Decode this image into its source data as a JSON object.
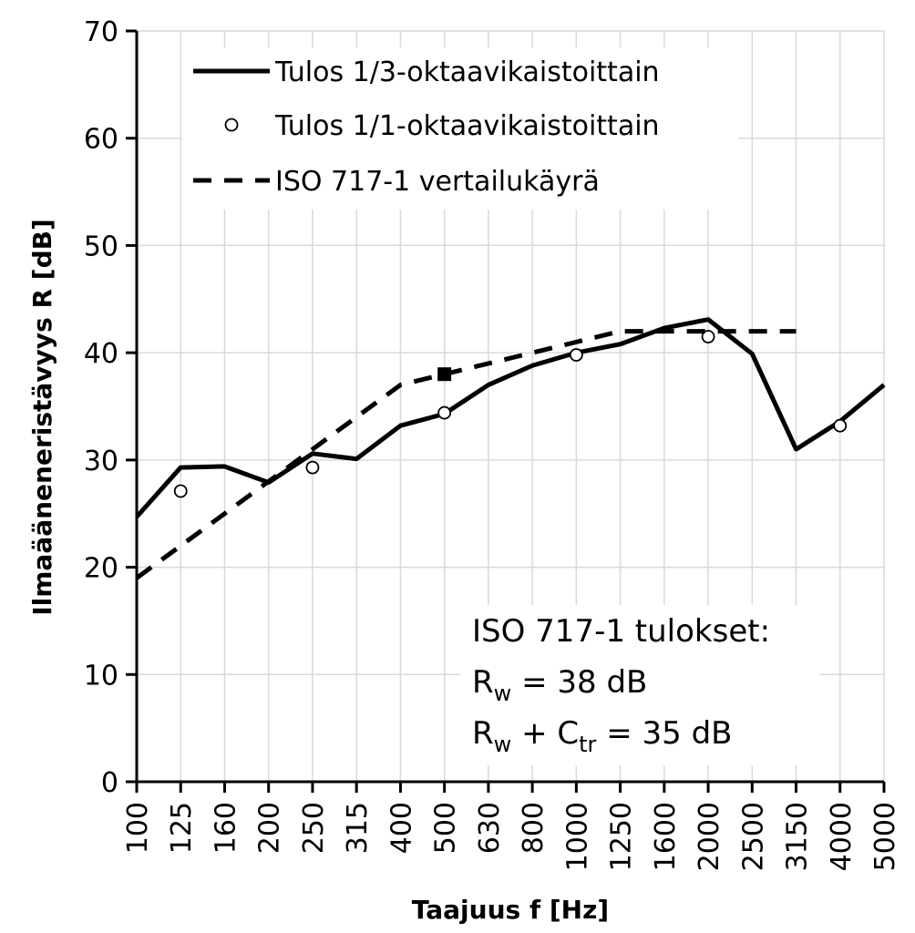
{
  "chart_data": {
    "type": "line",
    "xlabel": "Taajuus f [Hz]",
    "ylabel": "Ilmaääneneristävyys R [dB]",
    "ylim": [
      0,
      70
    ],
    "yticks": [
      "0",
      "10",
      "20",
      "30",
      "40",
      "50",
      "60",
      "70"
    ],
    "categories": [
      "100",
      "125",
      "160",
      "200",
      "250",
      "315",
      "400",
      "500",
      "630",
      "800",
      "1000",
      "1250",
      "1600",
      "2000",
      "2500",
      "3150",
      "4000",
      "5000"
    ],
    "grid": true,
    "legend_position": "top-left",
    "series": [
      {
        "name": "Tulos 1/3-oktaavikaistoittain",
        "style": "solid",
        "color": "#000000",
        "x": [
          "100",
          "125",
          "160",
          "200",
          "250",
          "315",
          "400",
          "500",
          "630",
          "800",
          "1000",
          "1250",
          "1600",
          "2000",
          "2500",
          "3150",
          "4000",
          "5000"
        ],
        "values": [
          24.7,
          29.3,
          29.4,
          27.9,
          30.6,
          30.1,
          33.2,
          34.3,
          37.0,
          38.8,
          40.0,
          40.8,
          42.3,
          43.1,
          39.9,
          31.0,
          33.6,
          37.0
        ]
      },
      {
        "name": "Tulos 1/1-oktaavikaistoittain",
        "style": "markers",
        "marker": "open-circle",
        "color": "#000000",
        "x": [
          "125",
          "250",
          "500",
          "1000",
          "2000",
          "4000"
        ],
        "values": [
          27.1,
          29.3,
          34.4,
          39.8,
          41.5,
          33.2
        ]
      },
      {
        "name": "ISO 717-1 vertailukäyrä",
        "style": "dashed",
        "color": "#000000",
        "x": [
          "100",
          "125",
          "160",
          "200",
          "250",
          "315",
          "400",
          "500",
          "630",
          "800",
          "1000",
          "1250",
          "1600",
          "2000",
          "2500",
          "3150"
        ],
        "values": [
          19,
          22,
          25,
          28,
          31,
          34,
          37,
          38,
          39,
          40,
          41,
          42,
          42,
          42,
          42,
          42
        ]
      }
    ],
    "highlight_point": {
      "x": "500",
      "value": 38,
      "marker": "filled-square"
    },
    "annotation": {
      "title": "ISO 717-1 tulokset:",
      "line1": {
        "base": "R",
        "sub": "w",
        "rest": " = 38 dB"
      },
      "line2": {
        "base1": "R",
        "sub1": "w",
        "mid": " + C",
        "sub2": "tr",
        "rest": " = 35 dB"
      }
    }
  }
}
